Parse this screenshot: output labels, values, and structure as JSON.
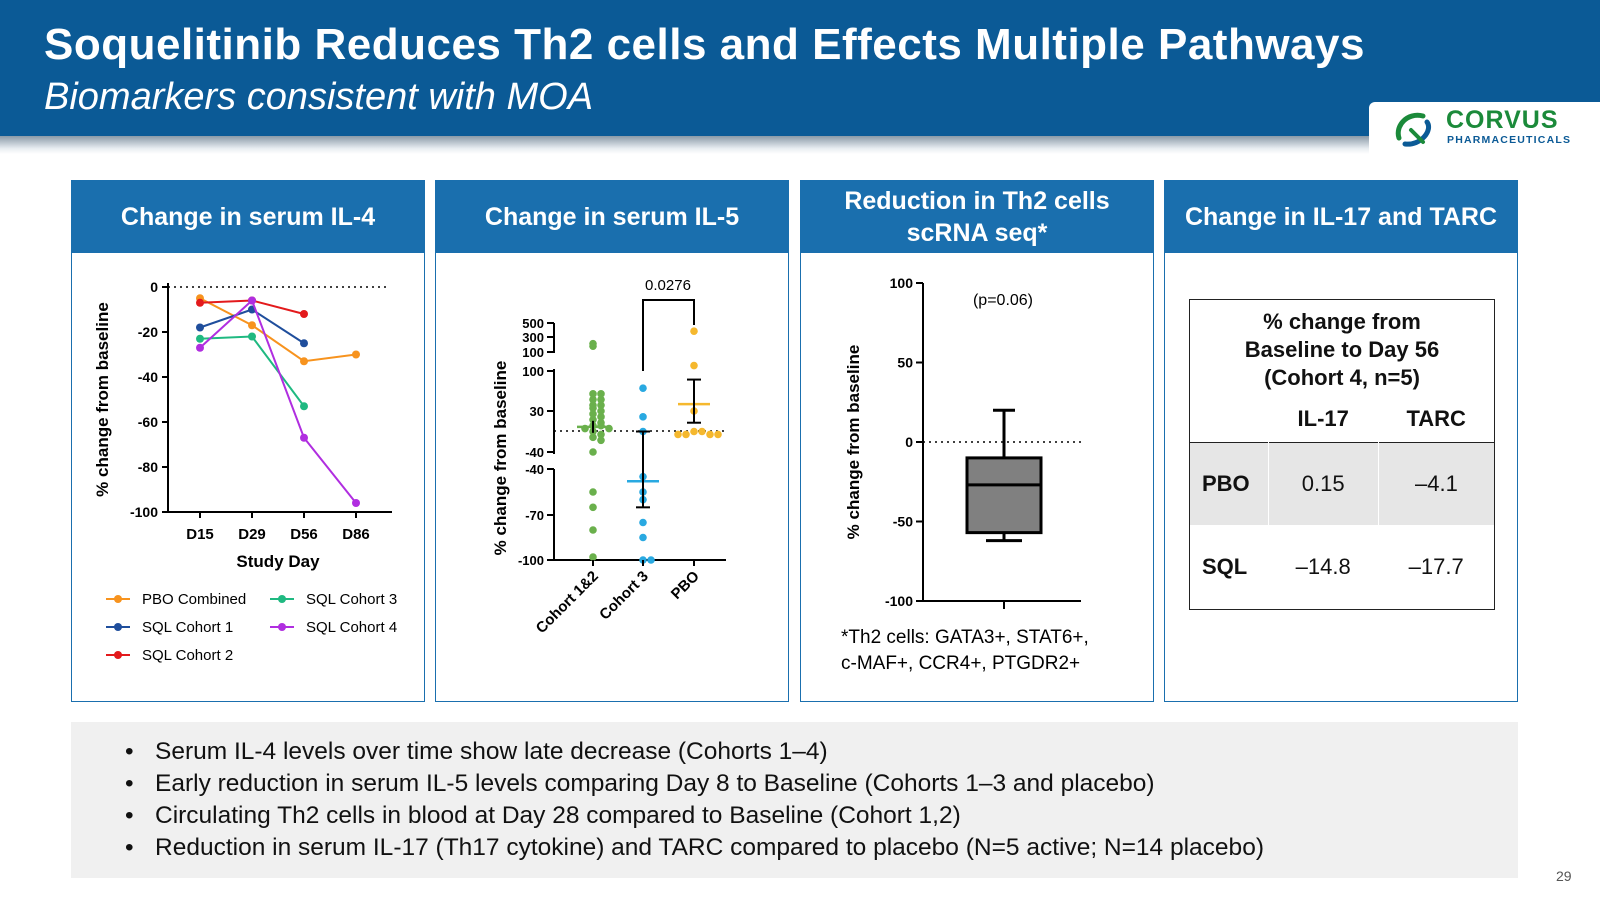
{
  "header": {
    "title": "Soquelitinib Reduces Th2 cells and Effects Multiple Pathways",
    "subtitle": "Biomarkers consistent with MOA",
    "logo_name": "CORVUS",
    "logo_sub": "PHARMACEUTICALS"
  },
  "colors": {
    "header_bg": "#0b5a96",
    "panel_head": "#1a6fae",
    "pbo_combined": "#f7931e",
    "sql_cohort1": "#1f4e9c",
    "sql_cohort2": "#e31a1c",
    "sql_cohort3": "#1fb981",
    "sql_cohort4": "#b02ee0",
    "cohort12_dots": "#6ab04c",
    "cohort3_dots": "#29a9e1",
    "pbo_dots": "#f5b82e"
  },
  "panels": {
    "il4": {
      "title": "Change in serum IL-4"
    },
    "il5": {
      "title": "Change in serum IL-5"
    },
    "th2": {
      "title": "Reduction in Th2 cells scRNA seq*"
    },
    "il17": {
      "title": "Change in IL-17 and TARC"
    }
  },
  "chart_data": [
    {
      "type": "line",
      "ylabel": "% change from baseline",
      "xlabel": "Study Day",
      "categories": [
        "D15",
        "D29",
        "D56",
        "D86"
      ],
      "y_ticks": [
        "0",
        "-20",
        "-40",
        "-60",
        "-80",
        "-100"
      ],
      "ylim": [
        -100,
        0
      ],
      "reference_line": 0,
      "legend_placement": "bottom",
      "series": [
        {
          "name": "PBO Combined",
          "values": [
            -5,
            -17,
            -33,
            -30
          ]
        },
        {
          "name": "SQL Cohort 1",
          "values": [
            -18,
            -10,
            -25,
            null
          ]
        },
        {
          "name": "SQL Cohort 2",
          "values": [
            -7,
            -6,
            -12,
            null
          ]
        },
        {
          "name": "SQL Cohort 3",
          "values": [
            -23,
            -22,
            -53,
            null
          ]
        },
        {
          "name": "SQL Cohort 4",
          "values": [
            -27,
            -6,
            -67,
            -96
          ]
        }
      ]
    },
    {
      "type": "scatter",
      "ylabel": "% change from baseline",
      "categories": [
        "Cohort 1&2",
        "Cohort 3",
        "PBO"
      ],
      "y_ticks_upper": [
        "500",
        "300",
        "100",
        "100",
        "30",
        "-40"
      ],
      "y_ticks_lower": [
        "-40",
        "-70",
        "-100"
      ],
      "annotation": "0.0276",
      "reference_line": 0,
      "groups": [
        {
          "values": [
            250,
            230,
            60,
            60,
            50,
            50,
            40,
            40,
            35,
            30,
            25,
            20,
            15,
            10,
            5,
            5,
            0,
            0,
            -5,
            -10,
            -15,
            -20,
            -40,
            -55,
            -65,
            -80,
            -98
          ],
          "mean": 3
        },
        {
          "values": [
            70,
            20,
            -5,
            -45,
            -55,
            -60,
            -75,
            -85,
            -100,
            -100
          ],
          "mean": -48,
          "sd_upper": -5,
          "sd_lower": -65
        },
        {
          "values": [
            380,
            120,
            30,
            -5,
            -5,
            -10,
            -10,
            -10,
            -10
          ],
          "mean": 42,
          "sd_upper": 85,
          "sd_lower": 10
        }
      ]
    },
    {
      "type": "box",
      "ylabel": "% change from baseline",
      "annotation": "(p=0.06)",
      "y_ticks": [
        "100",
        "50",
        "0",
        "-50",
        "-100"
      ],
      "ylim": [
        -100,
        100
      ],
      "reference_line": 0,
      "box": {
        "whisker_high": 20,
        "q3": -10,
        "median": -27,
        "q1": -57,
        "whisker_low": -62
      },
      "footnote_line1": "*Th2 cells: GATA3+, STAT6+,",
      "footnote_line2": "c-MAF+, CCR4+, PTGDR2+"
    },
    {
      "type": "table",
      "header_lines": [
        "% change from",
        "Baseline to Day 56",
        "(Cohort 4, n=5)"
      ],
      "columns": [
        "IL-17",
        "TARC"
      ],
      "rows": [
        {
          "label": "PBO",
          "il17": "0.15",
          "tarc": "–4.1"
        },
        {
          "label": "SQL",
          "il17": "–14.8",
          "tarc": "–17.7"
        }
      ]
    }
  ],
  "bullets": [
    "Serum IL-4 levels over time show late decrease (Cohorts 1–4)",
    "Early reduction in serum IL-5 levels comparing Day 8 to Baseline (Cohorts 1–3 and placebo)",
    "Circulating Th2 cells in blood at Day 28 compared to Baseline (Cohort 1,2)",
    "Reduction in serum IL-17 (Th17 cytokine) and TARC compared to placebo (N=5 active; N=14 placebo)"
  ],
  "page_number": "29"
}
